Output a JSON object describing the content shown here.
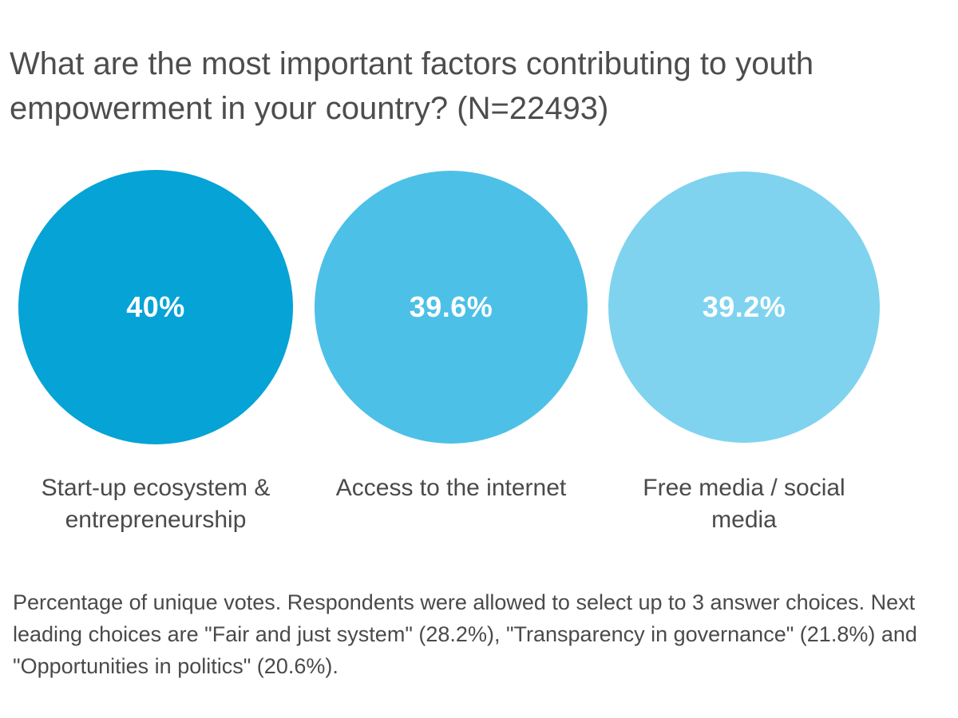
{
  "chart_data": {
    "type": "bubble",
    "title": "What are the most important factors contributing to youth empowerment in your country? (N=22493)",
    "categories": [
      "Start-up ecosystem & entrepreneurship",
      "Access to the internet",
      "Free media / social media"
    ],
    "values": [
      40,
      39.6,
      39.2
    ],
    "value_labels": [
      "40%",
      "39.6%",
      "39.2%"
    ],
    "colors": [
      "#05a3d6",
      "#4dc0e7",
      "#7fd3ef"
    ],
    "footnote": "Percentage of unique votes. Respondents were allowed to select up to 3 answer choices. Next leading choices are \"Fair and just system\" (28.2%), \"Transparency in governance\" (21.8%) and \"Opportunities in politics\" (20.6%)."
  }
}
